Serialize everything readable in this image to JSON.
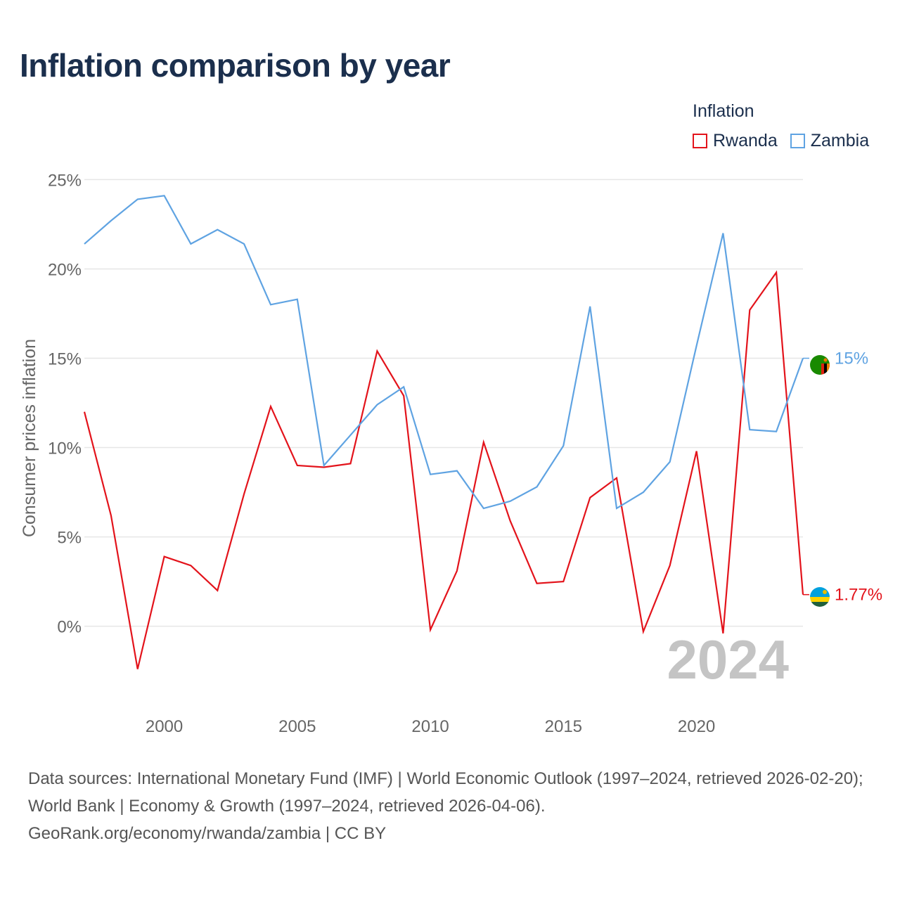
{
  "title": "Inflation comparison by year",
  "legend": {
    "title": "Inflation",
    "items": [
      {
        "name": "Rwanda",
        "color": "#e3131b"
      },
      {
        "name": "Zambia",
        "color": "#5fa3e2"
      }
    ]
  },
  "year_watermark": "2024",
  "footer": {
    "sources": "Data sources: International Monetary Fund (IMF) | World Economic Outlook (1997–2024, retrieved 2026-02-20); World Bank | Economy & Growth (1997–2024, retrieved 2026-04-06).",
    "attribution": "GeoRank.org/economy/rwanda/zambia | CC BY"
  },
  "chart_data": {
    "type": "line",
    "title": "Inflation comparison by year",
    "xlabel": "",
    "ylabel": "Consumer prices inflation",
    "xlim": [
      1997,
      2024
    ],
    "ylim": [
      -4.5,
      26
    ],
    "x_ticks": [
      2000,
      2005,
      2010,
      2015,
      2020
    ],
    "y_ticks": [
      0,
      5,
      10,
      15,
      20,
      25
    ],
    "y_tick_labels": [
      "0%",
      "5%",
      "10%",
      "15%",
      "20%",
      "25%"
    ],
    "grid": true,
    "x": [
      1997,
      1998,
      1999,
      2000,
      2001,
      2002,
      2003,
      2004,
      2005,
      2006,
      2007,
      2008,
      2009,
      2010,
      2011,
      2012,
      2013,
      2014,
      2015,
      2016,
      2017,
      2018,
      2019,
      2020,
      2021,
      2022,
      2023,
      2024
    ],
    "series": [
      {
        "name": "Rwanda",
        "color": "#e3131b",
        "values": [
          12.0,
          6.2,
          -2.4,
          3.9,
          3.4,
          2.0,
          7.4,
          12.3,
          9.0,
          8.9,
          9.1,
          15.4,
          12.9,
          -0.2,
          3.1,
          10.3,
          5.9,
          2.4,
          2.5,
          7.2,
          8.3,
          -0.3,
          3.4,
          9.8,
          -0.4,
          17.7,
          19.8,
          1.77
        ],
        "end_label": "1.77%"
      },
      {
        "name": "Zambia",
        "color": "#5fa3e2",
        "values": [
          21.4,
          22.7,
          23.9,
          24.1,
          21.4,
          22.2,
          21.4,
          18.0,
          18.3,
          9.0,
          10.7,
          12.4,
          13.4,
          8.5,
          8.7,
          6.6,
          7.0,
          7.8,
          10.1,
          17.9,
          6.6,
          7.5,
          9.2,
          15.7,
          22.0,
          11.0,
          10.9,
          15.0
        ],
        "end_label": "15%"
      }
    ]
  }
}
